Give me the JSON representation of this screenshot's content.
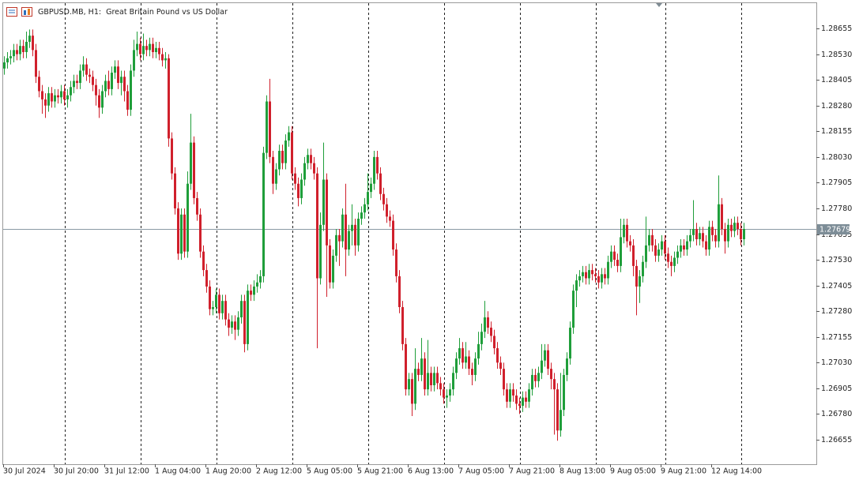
{
  "chart_data": {
    "type": "candlestick",
    "title": "GBPUSD.MB, H1:  Great Britain Pound vs US Dollar",
    "up_color": "#1f9e3a",
    "down_color": "#d0202c",
    "last_price": 1.27679,
    "ylim": [
      1.26536,
      1.28778
    ],
    "yticks": [
      1.28655,
      {
        "value": 1.2853,
        "label": "1.28530"
      },
      1.28405,
      {
        "value": 1.2828,
        "label": "1.28280"
      },
      1.28155,
      {
        "value": 1.2803,
        "label": "1.28030"
      },
      1.27905,
      {
        "value": 1.2778,
        "label": "1.27780"
      },
      1.27655,
      {
        "value": 1.2753,
        "label": "1.27530"
      },
      1.27405,
      {
        "value": 1.2728,
        "label": "1.27280"
      },
      1.27155,
      {
        "value": 1.2703,
        "label": "1.27030"
      },
      1.26905,
      {
        "value": 1.2678,
        "label": "1.26780"
      },
      1.26655
    ],
    "categories": [
      "30 Jul 2024",
      null,
      null,
      null,
      null,
      null,
      null,
      null,
      null,
      null,
      null,
      null,
      null,
      null,
      null,
      null,
      "30 Jul 20:00",
      null,
      null,
      null,
      null,
      null,
      null,
      null,
      null,
      null,
      null,
      null,
      null,
      null,
      null,
      null,
      "31 Jul 12:00",
      null,
      null,
      null,
      null,
      null,
      null,
      null,
      null,
      null,
      null,
      null,
      null,
      null,
      null,
      null,
      "1 Aug 04:00",
      null,
      null,
      null,
      null,
      null,
      null,
      null,
      null,
      null,
      null,
      null,
      null,
      null,
      null,
      null,
      "1 Aug 20:00",
      null,
      null,
      null,
      null,
      null,
      null,
      null,
      null,
      null,
      null,
      null,
      null,
      null,
      null,
      null,
      "2 Aug 12:00",
      null,
      null,
      null,
      null,
      null,
      null,
      null,
      null,
      null,
      null,
      null,
      null,
      null,
      null,
      null,
      "5 Aug 05:00",
      null,
      null,
      null,
      null,
      null,
      null,
      null,
      null,
      null,
      null,
      null,
      null,
      null,
      null,
      null,
      "5 Aug 21:00",
      null,
      null,
      null,
      null,
      null,
      null,
      null,
      null,
      null,
      null,
      null,
      null,
      null,
      null,
      null,
      "6 Aug 13:00",
      null,
      null,
      null,
      null,
      null,
      null,
      null,
      null,
      null,
      null,
      null,
      null,
      null,
      null,
      null,
      "7 Aug 05:00",
      null,
      null,
      null,
      null,
      null,
      null,
      null,
      null,
      null,
      null,
      null,
      null,
      null,
      null,
      null,
      "7 Aug 21:00",
      null,
      null,
      null,
      null,
      null,
      null,
      null,
      null,
      null,
      null,
      null,
      null,
      null,
      null,
      null,
      "8 Aug 13:00",
      null,
      null,
      null,
      null,
      null,
      null,
      null,
      null,
      null,
      null,
      null,
      null,
      null,
      null,
      null,
      "9 Aug 05:00",
      null,
      null,
      null,
      null,
      null,
      null,
      null,
      null,
      null,
      null,
      null,
      null,
      null,
      null,
      null,
      "9 Aug 21:00",
      null,
      null,
      null,
      null,
      null,
      null,
      null,
      null,
      null,
      null,
      null,
      null,
      null,
      null,
      null,
      "12 Aug 14:00",
      null,
      null,
      null,
      null,
      null,
      null,
      null,
      null,
      null,
      null
    ],
    "open": [
      1.2846,
      1.2849,
      1.2851,
      1.2852,
      1.2855,
      1.2853,
      1.2857,
      1.2854,
      1.2859,
      1.2862,
      1.2855,
      1.2842,
      1.2835,
      1.2831,
      1.2828,
      1.2834,
      1.283,
      1.2833,
      1.2832,
      1.2835,
      1.2831,
      1.2833,
      1.2837,
      1.284,
      1.2839,
      1.2845,
      1.2848,
      1.2843,
      1.2842,
      1.2838,
      1.2833,
      1.2827,
      1.2835,
      1.284,
      1.2836,
      1.2844,
      1.2847,
      1.2839,
      1.2842,
      1.2835,
      1.2826,
      1.2845,
      1.2855,
      1.2858,
      1.2853,
      1.2857,
      1.2855,
      1.2858,
      1.2854,
      1.2856,
      1.2853,
      1.285,
      1.2851,
      1.2812,
      1.2795,
      1.2778,
      1.2756,
      1.2775,
      1.2757,
      1.279,
      1.281,
      1.2783,
      1.2775,
      1.2757,
      1.2748,
      1.274,
      1.2729,
      1.273,
      1.2736,
      1.2727,
      1.2733,
      1.2724,
      1.272,
      1.2723,
      1.2719,
      1.2725,
      1.2733,
      1.2712,
      1.2738,
      1.2736,
      1.274,
      1.2742,
      1.2745,
      1.2805,
      1.283,
      1.2803,
      1.279,
      1.2797,
      1.2806,
      1.28,
      1.2811,
      1.2815,
      1.2795,
      1.279,
      1.2783,
      1.2792,
      1.28,
      1.2804,
      1.28,
      1.2795,
      1.2744,
      1.277,
      1.2792,
      1.276,
      1.2742,
      1.2755,
      1.2765,
      1.2762,
      1.2775,
      1.2758,
      1.2767,
      1.277,
      1.276,
      1.2773,
      1.2776,
      1.278,
      1.2786,
      1.279,
      1.2803,
      1.2795,
      1.2785,
      1.278,
      1.2774,
      1.2772,
      1.2758,
      1.2745,
      1.273,
      1.2712,
      1.269,
      1.2695,
      1.2683,
      1.27,
      1.2697,
      1.2705,
      1.269,
      1.2698,
      1.2692,
      1.2698,
      1.2693,
      1.269,
      1.2686,
      1.2687,
      1.269,
      1.2698,
      1.2705,
      1.271,
      1.2703,
      1.2706,
      1.27,
      1.2697,
      1.2705,
      1.2712,
      1.2718,
      1.2725,
      1.272,
      1.2716,
      1.271,
      1.2703,
      1.27,
      1.269,
      1.2684,
      1.269,
      1.2687,
      1.2683,
      1.2682,
      1.2686,
      1.2684,
      1.269,
      1.2697,
      1.2694,
      1.2698,
      1.2704,
      1.2709,
      1.27,
      1.2695,
      1.269,
      1.267,
      1.268,
      1.2697,
      1.2705,
      1.272,
      1.2738,
      1.2743,
      1.2745,
      1.2747,
      1.2744,
      1.2748,
      1.2746,
      1.2745,
      1.2742,
      1.2746,
      1.2744,
      1.2752,
      1.2757,
      1.2753,
      1.275,
      1.2764,
      1.277,
      1.2762,
      1.276,
      1.275,
      1.274,
      1.2745,
      1.2752,
      1.276,
      1.2765,
      1.276,
      1.2755,
      1.2758,
      1.2762,
      1.2756,
      1.2752,
      1.275,
      1.2754,
      1.2757,
      1.276,
      1.2758,
      1.2762,
      1.2765,
      1.2768,
      1.2763,
      1.2766,
      1.2762,
      1.2758,
      1.2769,
      1.2765,
      1.2762,
      1.278,
      1.2768,
      1.2762,
      1.277,
      1.2767,
      1.2771,
      1.2768,
      1.2763
    ],
    "high": [
      1.2852,
      1.2854,
      1.2855,
      1.2858,
      1.2858,
      1.286,
      1.286,
      1.2864,
      1.2865,
      1.2865,
      1.2858,
      1.2845,
      1.2838,
      1.2834,
      1.2837,
      1.2837,
      1.2836,
      1.2836,
      1.2838,
      1.2838,
      1.2836,
      1.284,
      1.2843,
      1.2843,
      1.2848,
      1.2852,
      1.2851,
      1.2846,
      1.2845,
      1.2841,
      1.2836,
      1.2838,
      1.2843,
      1.2845,
      1.2847,
      1.285,
      1.285,
      1.2845,
      1.2845,
      1.2838,
      1.2848,
      1.286,
      1.2864,
      1.2861,
      1.2863,
      1.286,
      1.2861,
      1.2861,
      1.2859,
      1.2859,
      1.2856,
      1.2854,
      1.2853,
      1.2815,
      1.2798,
      1.2781,
      1.2778,
      1.2778,
      1.2796,
      1.2824,
      1.2813,
      1.2786,
      1.2778,
      1.276,
      1.2751,
      1.2743,
      1.2733,
      1.2739,
      1.2739,
      1.2736,
      1.2736,
      1.2727,
      1.2726,
      1.2726,
      1.2728,
      1.2736,
      1.2736,
      1.2741,
      1.2741,
      1.2743,
      1.2746,
      1.2748,
      1.2808,
      1.2833,
      1.2841,
      1.2806,
      1.28,
      1.2809,
      1.2809,
      1.2814,
      1.2818,
      1.2818,
      1.2798,
      1.2793,
      1.2795,
      1.2803,
      1.2807,
      1.2807,
      1.2803,
      1.2798,
      1.2776,
      1.281,
      1.2795,
      1.2763,
      1.2758,
      1.2768,
      1.2768,
      1.2778,
      1.279,
      1.277,
      1.278,
      1.2773,
      1.2776,
      1.2779,
      1.2783,
      1.2795,
      1.2793,
      1.2806,
      1.2806,
      1.2798,
      1.2788,
      1.2783,
      1.2777,
      1.2775,
      1.2761,
      1.2748,
      1.2733,
      1.2715,
      1.2698,
      1.2698,
      1.271,
      1.2703,
      1.2715,
      1.2708,
      1.2714,
      1.2701,
      1.2701,
      1.2701,
      1.2696,
      1.2693,
      1.269,
      1.2693,
      1.2701,
      1.2708,
      1.2715,
      1.2713,
      1.2713,
      1.2709,
      1.2703,
      1.2708,
      1.2718,
      1.2722,
      1.2733,
      1.2728,
      1.2723,
      1.2719,
      1.2713,
      1.2706,
      1.2703,
      1.2693,
      1.2693,
      1.2693,
      1.269,
      1.2686,
      1.2689,
      1.2689,
      1.2693,
      1.27,
      1.27,
      1.2701,
      1.2712,
      1.2712,
      1.2712,
      1.2703,
      1.2698,
      1.2693,
      1.2698,
      1.27,
      1.2708,
      1.2723,
      1.2741,
      1.2746,
      1.2748,
      1.275,
      1.275,
      1.2751,
      1.2751,
      1.2749,
      1.2748,
      1.2749,
      1.2749,
      1.2755,
      1.276,
      1.276,
      1.2756,
      1.2773,
      1.2773,
      1.2773,
      1.2765,
      1.2763,
      1.2753,
      1.2748,
      1.2755,
      1.2774,
      1.2768,
      1.2768,
      1.2763,
      1.2761,
      1.2765,
      1.2765,
      1.2759,
      1.2755,
      1.2757,
      1.276,
      1.2763,
      1.2763,
      1.2765,
      1.2768,
      1.2782,
      1.2771,
      1.2769,
      1.2769,
      1.2765,
      1.2772,
      1.2772,
      1.2768,
      1.2794,
      1.2783,
      1.2771,
      1.2773,
      1.2773,
      1.2774,
      1.2774,
      1.2771,
      1.2771
    ],
    "low": [
      1.2843,
      1.2846,
      1.2848,
      1.2849,
      1.285,
      1.285,
      1.2851,
      1.2851,
      1.2856,
      1.2852,
      1.2839,
      1.2832,
      1.2824,
      1.2822,
      1.2825,
      1.2827,
      1.2827,
      1.2829,
      1.2829,
      1.2828,
      1.2827,
      1.283,
      1.2834,
      1.2836,
      1.2836,
      1.2842,
      1.284,
      1.2839,
      1.2835,
      1.2828,
      1.2822,
      1.2824,
      1.2832,
      1.2833,
      1.2833,
      1.2841,
      1.2836,
      1.2833,
      1.283,
      1.2823,
      1.2823,
      1.2842,
      1.2852,
      1.285,
      1.285,
      1.2852,
      1.2852,
      1.2851,
      1.2851,
      1.285,
      1.2847,
      1.2846,
      1.2808,
      1.2792,
      1.2775,
      1.2753,
      1.2753,
      1.2754,
      1.2754,
      1.2787,
      1.278,
      1.2772,
      1.2754,
      1.2745,
      1.2737,
      1.2726,
      1.2726,
      1.2727,
      1.2724,
      1.2724,
      1.2721,
      1.2716,
      1.2717,
      1.2714,
      1.2716,
      1.2722,
      1.2708,
      1.2709,
      1.2733,
      1.2733,
      1.2737,
      1.2739,
      1.2742,
      1.2802,
      1.28,
      1.2785,
      1.2787,
      1.2794,
      1.2797,
      1.2797,
      1.2808,
      1.2792,
      1.2787,
      1.2779,
      1.278,
      1.2789,
      1.2797,
      1.2797,
      1.2792,
      1.271,
      1.2741,
      1.2767,
      1.2735,
      1.2739,
      1.2739,
      1.2752,
      1.275,
      1.2759,
      1.2745,
      1.2755,
      1.276,
      1.2755,
      1.2757,
      1.277,
      1.2773,
      1.2777,
      1.2783,
      1.2787,
      1.2792,
      1.2782,
      1.2777,
      1.2771,
      1.2769,
      1.2755,
      1.2742,
      1.2727,
      1.2709,
      1.2687,
      1.2687,
      1.2677,
      1.268,
      1.2694,
      1.2694,
      1.2687,
      1.2687,
      1.2689,
      1.2689,
      1.269,
      1.2687,
      1.2683,
      1.2681,
      1.2684,
      1.2687,
      1.2695,
      1.2702,
      1.27,
      1.27,
      1.2697,
      1.2692,
      1.2694,
      1.2702,
      1.2709,
      1.2715,
      1.2717,
      1.2713,
      1.2707,
      1.27,
      1.2697,
      1.2687,
      1.2681,
      1.2681,
      1.2684,
      1.268,
      1.2678,
      1.2679,
      1.2681,
      1.2681,
      1.2687,
      1.2691,
      1.2691,
      1.2695,
      1.2701,
      1.2697,
      1.269,
      1.2668,
      1.2665,
      1.2667,
      1.2677,
      1.2694,
      1.2702,
      1.2717,
      1.273,
      1.274,
      1.2742,
      1.2741,
      1.2741,
      1.2743,
      1.2742,
      1.2739,
      1.2739,
      1.2741,
      1.2741,
      1.2749,
      1.275,
      1.2747,
      1.2747,
      1.2761,
      1.2759,
      1.2757,
      1.2745,
      1.2726,
      1.2732,
      1.2742,
      1.2749,
      1.2757,
      1.2757,
      1.2752,
      1.2752,
      1.2755,
      1.2753,
      1.2749,
      1.2745,
      1.2747,
      1.2751,
      1.2754,
      1.2755,
      1.2755,
      1.2759,
      1.2762,
      1.276,
      1.276,
      1.2759,
      1.2755,
      1.2755,
      1.2762,
      1.2759,
      1.2759,
      1.2765,
      1.2756,
      1.2759,
      1.2764,
      1.2764,
      1.2765,
      1.276,
      1.276
    ],
    "close": [
      1.2849,
      1.2851,
      1.2852,
      1.2855,
      1.2853,
      1.2857,
      1.2854,
      1.2859,
      1.2862,
      1.2855,
      1.2842,
      1.2835,
      1.2831,
      1.2828,
      1.2834,
      1.283,
      1.2833,
      1.2832,
      1.2835,
      1.2831,
      1.2833,
      1.2837,
      1.284,
      1.2839,
      1.2845,
      1.2848,
      1.2843,
      1.2842,
      1.2838,
      1.2833,
      1.2827,
      1.2835,
      1.284,
      1.2836,
      1.2844,
      1.2847,
      1.2839,
      1.2842,
      1.2835,
      1.2826,
      1.2845,
      1.2855,
      1.2858,
      1.2853,
      1.2857,
      1.2855,
      1.2858,
      1.2854,
      1.2856,
      1.2853,
      1.285,
      1.2851,
      1.2812,
      1.2795,
      1.2778,
      1.2756,
      1.2775,
      1.2757,
      1.279,
      1.281,
      1.2783,
      1.2775,
      1.2757,
      1.2748,
      1.274,
      1.2729,
      1.273,
      1.2736,
      1.2727,
      1.2733,
      1.2724,
      1.272,
      1.2723,
      1.2719,
      1.2725,
      1.2733,
      1.2712,
      1.2738,
      1.2736,
      1.274,
      1.2742,
      1.2745,
      1.2805,
      1.283,
      1.2803,
      1.279,
      1.2797,
      1.2806,
      1.28,
      1.2811,
      1.2815,
      1.2795,
      1.279,
      1.2783,
      1.2792,
      1.28,
      1.2804,
      1.28,
      1.2795,
      1.2744,
      1.277,
      1.2792,
      1.276,
      1.2742,
      1.2755,
      1.2765,
      1.2762,
      1.2775,
      1.2758,
      1.2767,
      1.277,
      1.276,
      1.2773,
      1.2776,
      1.278,
      1.2786,
      1.279,
      1.2803,
      1.2795,
      1.2785,
      1.278,
      1.2774,
      1.2772,
      1.2758,
      1.2745,
      1.273,
      1.2712,
      1.269,
      1.2695,
      1.2683,
      1.27,
      1.2697,
      1.2705,
      1.269,
      1.2698,
      1.2692,
      1.2698,
      1.2693,
      1.269,
      1.2686,
      1.2687,
      1.269,
      1.2698,
      1.2705,
      1.271,
      1.2703,
      1.2706,
      1.27,
      1.2697,
      1.2705,
      1.2712,
      1.2718,
      1.2725,
      1.272,
      1.2716,
      1.271,
      1.2703,
      1.27,
      1.269,
      1.2684,
      1.269,
      1.2687,
      1.2683,
      1.2682,
      1.2686,
      1.2684,
      1.269,
      1.2697,
      1.2694,
      1.2698,
      1.2704,
      1.2709,
      1.27,
      1.2695,
      1.269,
      1.267,
      1.268,
      1.2697,
      1.2705,
      1.272,
      1.2738,
      1.2743,
      1.2745,
      1.2747,
      1.2744,
      1.2748,
      1.2746,
      1.2745,
      1.2742,
      1.2746,
      1.2744,
      1.2752,
      1.2757,
      1.2753,
      1.275,
      1.2764,
      1.277,
      1.2762,
      1.276,
      1.275,
      1.274,
      1.2745,
      1.2752,
      1.276,
      1.2765,
      1.276,
      1.2755,
      1.2758,
      1.2762,
      1.2756,
      1.2752,
      1.275,
      1.2754,
      1.2757,
      1.276,
      1.2758,
      1.2762,
      1.2765,
      1.2768,
      1.2763,
      1.2766,
      1.2762,
      1.2758,
      1.2769,
      1.2765,
      1.2762,
      1.278,
      1.2768,
      1.2762,
      1.277,
      1.2767,
      1.2771,
      1.2768,
      1.2763,
      1.2768
    ]
  }
}
